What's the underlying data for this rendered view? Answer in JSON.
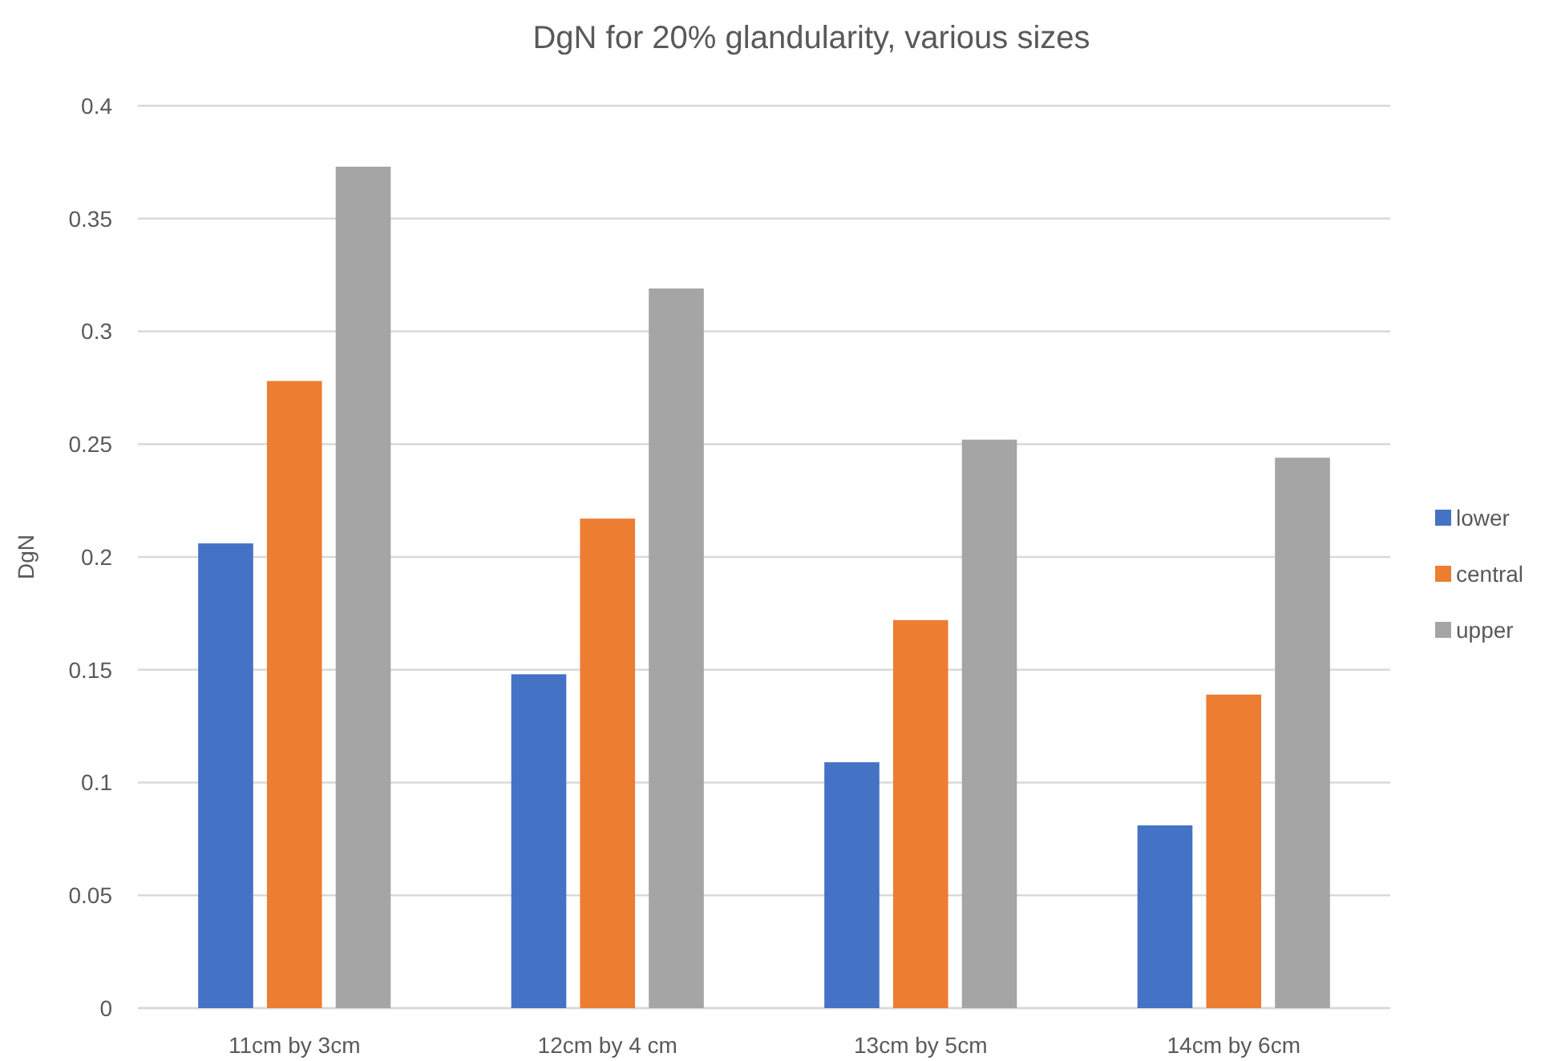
{
  "chart_data": {
    "type": "bar",
    "title": "DgN for 20% glandularity, various sizes",
    "ylabel": "DgN",
    "categories": [
      "11cm by 3cm",
      "12cm by 4 cm",
      "13cm by 5cm",
      "14cm by 6cm"
    ],
    "series": [
      {
        "name": "lower",
        "color": "#4472c4",
        "values": [
          0.206,
          0.148,
          0.109,
          0.081
        ]
      },
      {
        "name": "central",
        "color": "#ed7d31",
        "values": [
          0.278,
          0.217,
          0.172,
          0.139
        ]
      },
      {
        "name": "upper",
        "color": "#a5a5a5",
        "values": [
          0.373,
          0.319,
          0.252,
          0.244
        ]
      }
    ],
    "ylim": [
      0,
      0.4
    ],
    "yticks": [
      0,
      0.05,
      0.1,
      0.15,
      0.2,
      0.25,
      0.3,
      0.35,
      0.4
    ],
    "grid": "y",
    "legend": "right"
  }
}
